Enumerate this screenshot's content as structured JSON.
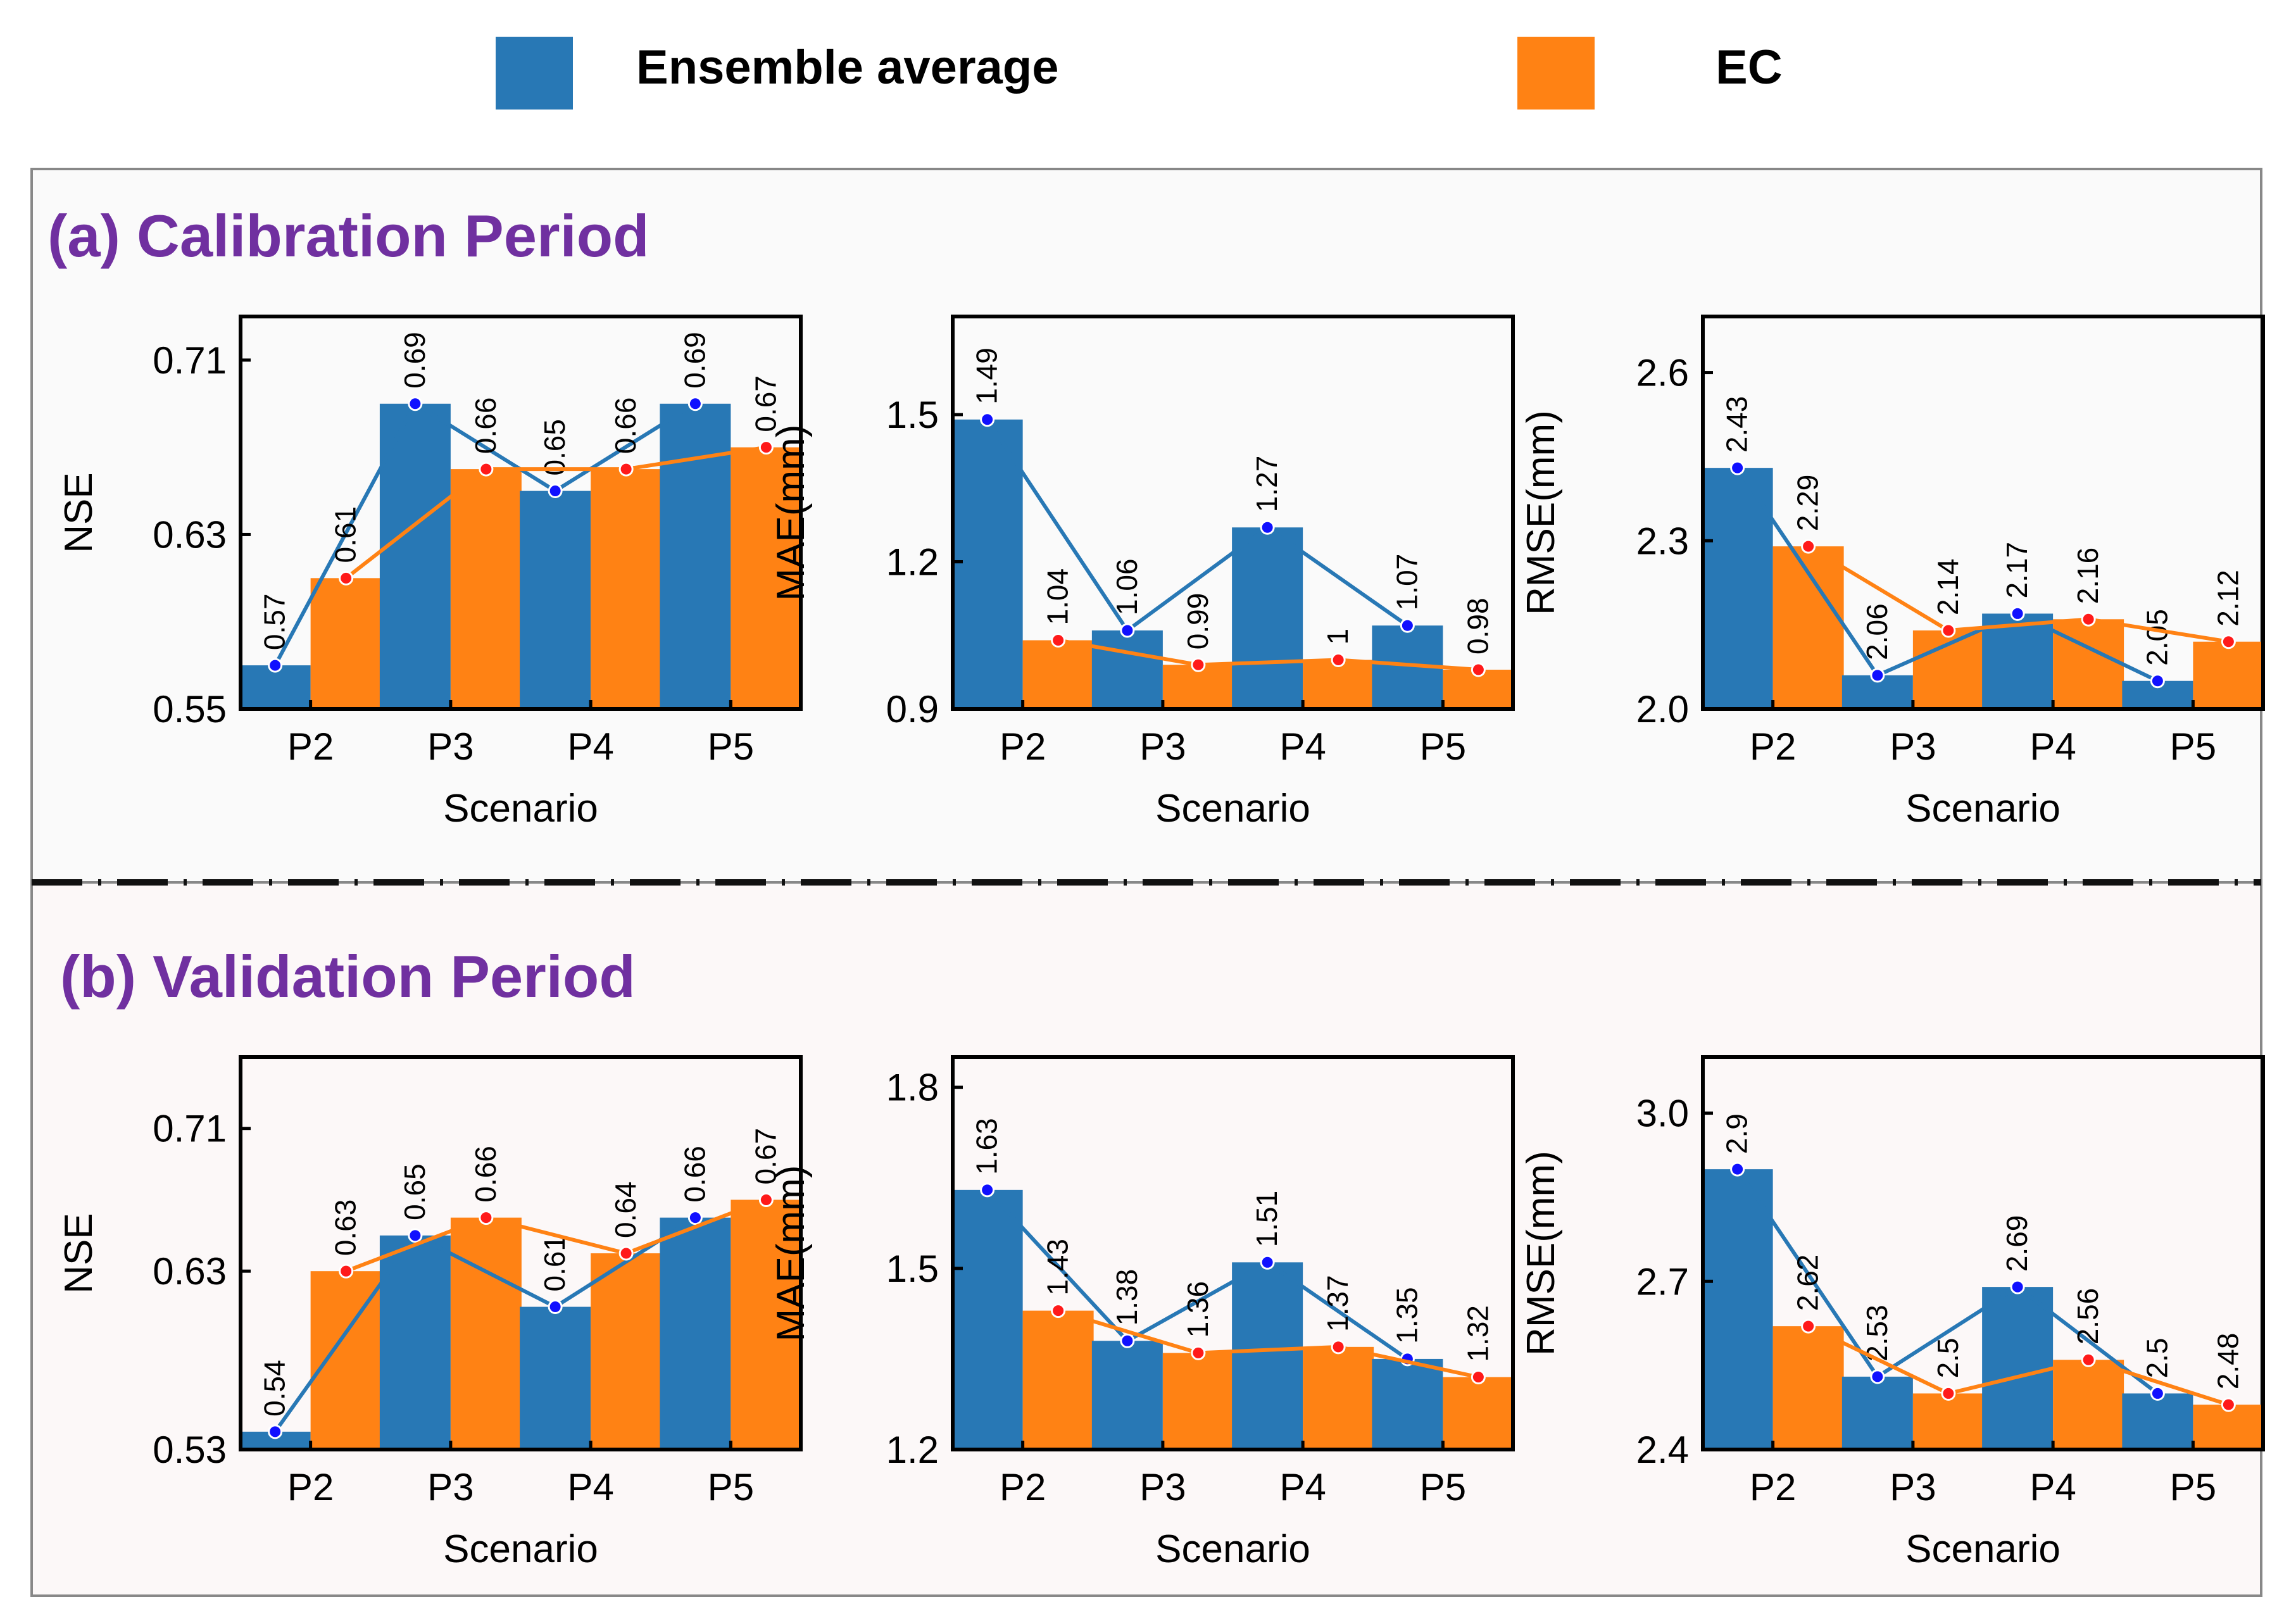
{
  "colors": {
    "ensemble": "#2878b5",
    "ec": "#ff8214",
    "ensemble_marker": "#1010ff",
    "ec_marker": "#ff1a1a",
    "panel_title": "#7030a0",
    "panel_a_bg": "#fafafa",
    "panel_b_bg": "#fcf8f8"
  },
  "legend": {
    "ensemble_label": "Ensemble average",
    "ec_label": "EC"
  },
  "panels": {
    "calibration_title": "(a) Calibration Period",
    "validation_title": "(b) Validation Period"
  },
  "chart_data": [
    {
      "id": "cal-nse",
      "type": "bar",
      "period": "Calibration",
      "title": "",
      "xlabel": "Scenario",
      "ylabel": "NSE",
      "categories": [
        "P2",
        "P3",
        "P4",
        "P5"
      ],
      "ylim": [
        0.55,
        0.73
      ],
      "yticks": [
        0.55,
        0.63,
        0.71
      ],
      "ytick_labels": [
        "0.55",
        "0.63",
        "0.71"
      ],
      "series": [
        {
          "name": "Ensemble average",
          "values": [
            0.57,
            0.69,
            0.65,
            0.69
          ],
          "labels": [
            "0.57",
            "0.69",
            "0.65",
            "0.69"
          ]
        },
        {
          "name": "EC",
          "values": [
            0.61,
            0.66,
            0.66,
            0.67
          ],
          "labels": [
            "0.61",
            "0.66",
            "0.66",
            "0.67"
          ]
        }
      ]
    },
    {
      "id": "cal-mae",
      "type": "bar",
      "period": "Calibration",
      "title": "",
      "xlabel": "Scenario",
      "ylabel": "MAE(mm)",
      "categories": [
        "P2",
        "P3",
        "P4",
        "P5"
      ],
      "ylim": [
        0.9,
        1.7
      ],
      "yticks": [
        0.9,
        1.2,
        1.5
      ],
      "ytick_labels": [
        "0.9",
        "1.2",
        "1.5"
      ],
      "series": [
        {
          "name": "Ensemble average",
          "values": [
            1.49,
            1.06,
            1.27,
            1.07
          ],
          "labels": [
            "1.49",
            "1.06",
            "1.27",
            "1.07"
          ]
        },
        {
          "name": "EC",
          "values": [
            1.04,
            0.99,
            1.0,
            0.98
          ],
          "labels": [
            "1.04",
            "0.99",
            "1",
            "0.98"
          ]
        }
      ]
    },
    {
      "id": "cal-rmse",
      "type": "bar",
      "period": "Calibration",
      "title": "",
      "xlabel": "Scenario",
      "ylabel": "RMSE(mm)",
      "categories": [
        "P2",
        "P3",
        "P4",
        "P5"
      ],
      "ylim": [
        2.0,
        2.7
      ],
      "yticks": [
        2.0,
        2.3,
        2.6
      ],
      "ytick_labels": [
        "2.0",
        "2.3",
        "2.6"
      ],
      "series": [
        {
          "name": "Ensemble average",
          "values": [
            2.43,
            2.06,
            2.17,
            2.05
          ],
          "labels": [
            "2.43",
            "2.06",
            "2.17",
            "2.05"
          ]
        },
        {
          "name": "EC",
          "values": [
            2.29,
            2.14,
            2.16,
            2.12
          ],
          "labels": [
            "2.29",
            "2.14",
            "2.16",
            "2.12"
          ]
        }
      ]
    },
    {
      "id": "val-nse",
      "type": "bar",
      "period": "Validation",
      "title": "",
      "xlabel": "Scenario",
      "ylabel": "NSE",
      "categories": [
        "P2",
        "P3",
        "P4",
        "P5"
      ],
      "ylim": [
        0.53,
        0.75
      ],
      "yticks": [
        0.53,
        0.63,
        0.71
      ],
      "ytick_labels": [
        "0.53",
        "0.63",
        "0.71"
      ],
      "series": [
        {
          "name": "Ensemble average",
          "values": [
            0.54,
            0.65,
            0.61,
            0.66
          ],
          "labels": [
            "0.54",
            "0.65",
            "0.61",
            "0.66"
          ]
        },
        {
          "name": "EC",
          "values": [
            0.63,
            0.66,
            0.64,
            0.67
          ],
          "labels": [
            "0.63",
            "0.66",
            "0.64",
            "0.67"
          ]
        }
      ]
    },
    {
      "id": "val-mae",
      "type": "bar",
      "period": "Validation",
      "title": "",
      "xlabel": "Scenario",
      "ylabel": "MAE(mm)",
      "categories": [
        "P2",
        "P3",
        "P4",
        "P5"
      ],
      "ylim": [
        1.2,
        1.85
      ],
      "yticks": [
        1.2,
        1.5,
        1.8
      ],
      "ytick_labels": [
        "1.2",
        "1.5",
        "1.8"
      ],
      "series": [
        {
          "name": "Ensemble average",
          "values": [
            1.63,
            1.38,
            1.51,
            1.35
          ],
          "labels": [
            "1.63",
            "1.38",
            "1.51",
            "1.35"
          ]
        },
        {
          "name": "EC",
          "values": [
            1.43,
            1.36,
            1.37,
            1.32
          ],
          "labels": [
            "1.43",
            "1.36",
            "1.37",
            "1.32"
          ]
        }
      ]
    },
    {
      "id": "val-rmse",
      "type": "bar",
      "period": "Validation",
      "title": "",
      "xlabel": "Scenario",
      "ylabel": "RMSE(mm)",
      "categories": [
        "P2",
        "P3",
        "P4",
        "P5"
      ],
      "ylim": [
        2.4,
        3.1
      ],
      "yticks": [
        2.4,
        2.7,
        3.0
      ],
      "ytick_labels": [
        "2.4",
        "2.7",
        "3.0"
      ],
      "series": [
        {
          "name": "Ensemble average",
          "values": [
            2.9,
            2.53,
            2.69,
            2.5
          ],
          "labels": [
            "2.9",
            "2.53",
            "2.69",
            "2.5"
          ]
        },
        {
          "name": "EC",
          "values": [
            2.62,
            2.5,
            2.56,
            2.48
          ],
          "labels": [
            "2.62",
            "2.5",
            "2.56",
            "2.48"
          ]
        }
      ]
    }
  ]
}
